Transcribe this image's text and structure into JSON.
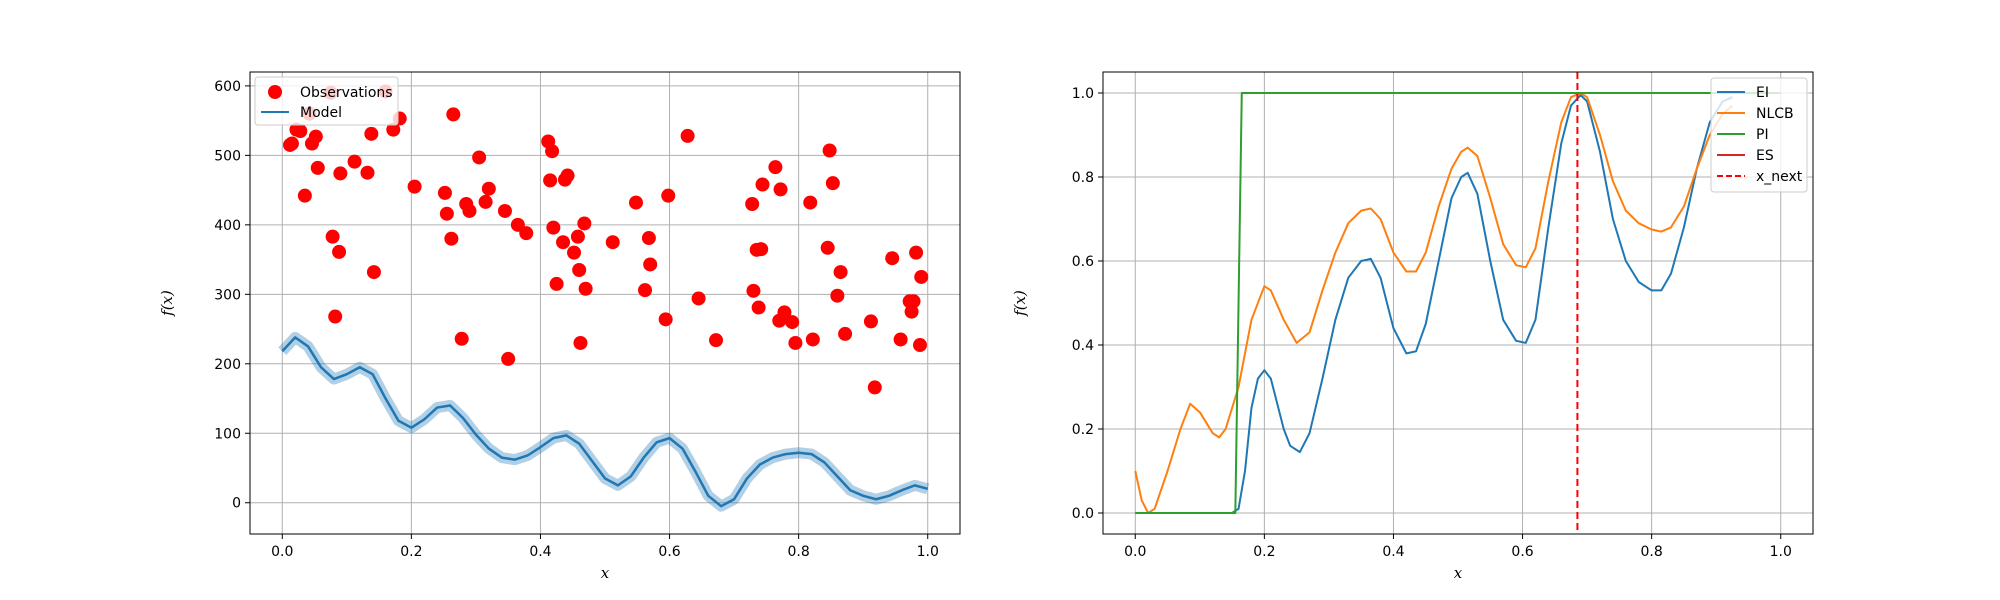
{
  "chart_data": [
    {
      "type": "scatter",
      "xlabel": "x",
      "ylabel": "f(x)",
      "xlim": [
        -0.05,
        1.05
      ],
      "ylim": [
        -45,
        620
      ],
      "xticks": [
        0.0,
        0.2,
        0.4,
        0.6,
        0.8,
        1.0
      ],
      "xtick_labels": [
        "0.0",
        "0.2",
        "0.4",
        "0.6",
        "0.8",
        "1.0"
      ],
      "yticks": [
        0,
        100,
        200,
        300,
        400,
        500,
        600
      ],
      "ytick_labels": [
        "0",
        "100",
        "200",
        "300",
        "400",
        "500",
        "600"
      ],
      "grid": true,
      "legend_position": "top-left",
      "colors": {
        "observations": "#ff0000",
        "model": "#1f77b4"
      },
      "series": [
        {
          "name": "Observations",
          "kind": "scatter",
          "x": [
            0.012,
            0.015,
            0.022,
            0.028,
            0.035,
            0.042,
            0.046,
            0.052,
            0.055,
            0.075,
            0.078,
            0.082,
            0.088,
            0.09,
            0.112,
            0.132,
            0.138,
            0.142,
            0.16,
            0.172,
            0.182,
            0.205,
            0.252,
            0.255,
            0.262,
            0.265,
            0.278,
            0.285,
            0.29,
            0.305,
            0.315,
            0.32,
            0.345,
            0.35,
            0.365,
            0.378,
            0.412,
            0.415,
            0.418,
            0.42,
            0.425,
            0.435,
            0.438,
            0.442,
            0.452,
            0.458,
            0.46,
            0.462,
            0.468,
            0.47,
            0.512,
            0.548,
            0.562,
            0.568,
            0.57,
            0.594,
            0.598,
            0.628,
            0.645,
            0.672,
            0.728,
            0.73,
            0.735,
            0.738,
            0.742,
            0.744,
            0.764,
            0.77,
            0.772,
            0.778,
            0.79,
            0.795,
            0.818,
            0.822,
            0.845,
            0.848,
            0.853,
            0.86,
            0.865,
            0.872,
            0.912,
            0.918,
            0.945,
            0.958,
            0.972,
            0.975,
            0.978,
            0.982,
            0.988,
            0.99
          ],
          "y": [
            515,
            517,
            537,
            535,
            442,
            560,
            517,
            527,
            482,
            590,
            383,
            268,
            361,
            474,
            491,
            475,
            531,
            332,
            592,
            537,
            553,
            455,
            446,
            416,
            380,
            559,
            236,
            430,
            420,
            497,
            433,
            452,
            420,
            207,
            400,
            388,
            520,
            464,
            506,
            396,
            315,
            375,
            465,
            471,
            360,
            383,
            335,
            230,
            402,
            308,
            375,
            432,
            306,
            381,
            343,
            264,
            442,
            528,
            294,
            234,
            430,
            305,
            364,
            281,
            365,
            458,
            483,
            262,
            451,
            274,
            260,
            230,
            432,
            235,
            367,
            507,
            460,
            298,
            332,
            243,
            261,
            166,
            352,
            235,
            290,
            275,
            290,
            360,
            227,
            325
          ]
        },
        {
          "name": "Model",
          "kind": "line",
          "x": [
            0.0,
            0.02,
            0.04,
            0.06,
            0.08,
            0.1,
            0.12,
            0.14,
            0.16,
            0.18,
            0.2,
            0.22,
            0.24,
            0.26,
            0.28,
            0.3,
            0.32,
            0.34,
            0.36,
            0.38,
            0.4,
            0.42,
            0.44,
            0.46,
            0.48,
            0.5,
            0.52,
            0.54,
            0.56,
            0.58,
            0.6,
            0.62,
            0.64,
            0.66,
            0.68,
            0.7,
            0.72,
            0.74,
            0.76,
            0.78,
            0.8,
            0.82,
            0.84,
            0.86,
            0.88,
            0.9,
            0.92,
            0.94,
            0.96,
            0.98,
            1.0
          ],
          "y": [
            218,
            238,
            225,
            195,
            178,
            185,
            195,
            185,
            150,
            118,
            108,
            120,
            137,
            140,
            122,
            98,
            78,
            65,
            62,
            68,
            80,
            93,
            97,
            85,
            60,
            35,
            25,
            38,
            65,
            87,
            93,
            78,
            45,
            10,
            -5,
            5,
            35,
            55,
            65,
            70,
            72,
            70,
            58,
            38,
            18,
            10,
            5,
            10,
            18,
            25,
            20
          ]
        }
      ]
    },
    {
      "type": "line",
      "xlabel": "x",
      "ylabel": "f(x)",
      "xlim": [
        -0.05,
        1.05
      ],
      "ylim": [
        -0.05,
        1.05
      ],
      "xticks": [
        0.0,
        0.2,
        0.4,
        0.6,
        0.8,
        1.0
      ],
      "xtick_labels": [
        "0.0",
        "0.2",
        "0.4",
        "0.6",
        "0.8",
        "1.0"
      ],
      "yticks": [
        0.0,
        0.2,
        0.4,
        0.6,
        0.8,
        1.0
      ],
      "ytick_labels": [
        "0.0",
        "0.2",
        "0.4",
        "0.6",
        "0.8",
        "1.0"
      ],
      "grid": true,
      "legend_position": "top-right",
      "x_next": 0.685,
      "series": [
        {
          "name": "EI",
          "color": "#1f77b4",
          "x": [
            0.0,
            0.15,
            0.16,
            0.17,
            0.18,
            0.19,
            0.2,
            0.21,
            0.22,
            0.23,
            0.24,
            0.255,
            0.27,
            0.29,
            0.31,
            0.33,
            0.35,
            0.365,
            0.38,
            0.4,
            0.42,
            0.435,
            0.45,
            0.47,
            0.49,
            0.505,
            0.515,
            0.53,
            0.55,
            0.57,
            0.59,
            0.605,
            0.62,
            0.64,
            0.66,
            0.675,
            0.69,
            0.7,
            0.72,
            0.74,
            0.76,
            0.78,
            0.8,
            0.815,
            0.83,
            0.85,
            0.87,
            0.89,
            0.91,
            0.925
          ],
          "y": [
            0.0,
            0.0,
            0.01,
            0.1,
            0.25,
            0.32,
            0.34,
            0.32,
            0.26,
            0.2,
            0.16,
            0.145,
            0.19,
            0.32,
            0.46,
            0.56,
            0.6,
            0.605,
            0.56,
            0.44,
            0.38,
            0.385,
            0.45,
            0.6,
            0.75,
            0.8,
            0.81,
            0.76,
            0.6,
            0.46,
            0.41,
            0.405,
            0.46,
            0.68,
            0.88,
            0.97,
            0.995,
            0.98,
            0.86,
            0.7,
            0.6,
            0.55,
            0.53,
            0.53,
            0.57,
            0.68,
            0.82,
            0.93,
            0.98,
            0.99
          ]
        },
        {
          "name": "NLCB",
          "color": "#ff7f0e",
          "x": [
            0.0,
            0.01,
            0.02,
            0.03,
            0.05,
            0.07,
            0.085,
            0.1,
            0.12,
            0.13,
            0.14,
            0.16,
            0.18,
            0.2,
            0.21,
            0.23,
            0.25,
            0.27,
            0.29,
            0.31,
            0.33,
            0.35,
            0.365,
            0.38,
            0.4,
            0.42,
            0.435,
            0.45,
            0.47,
            0.49,
            0.505,
            0.515,
            0.53,
            0.55,
            0.57,
            0.59,
            0.605,
            0.62,
            0.64,
            0.66,
            0.675,
            0.69,
            0.7,
            0.72,
            0.74,
            0.76,
            0.78,
            0.8,
            0.815,
            0.83,
            0.85,
            0.87,
            0.89,
            0.91,
            0.925
          ],
          "y": [
            0.1,
            0.03,
            0.0,
            0.01,
            0.1,
            0.2,
            0.26,
            0.24,
            0.19,
            0.18,
            0.2,
            0.3,
            0.46,
            0.54,
            0.53,
            0.46,
            0.405,
            0.43,
            0.53,
            0.62,
            0.69,
            0.72,
            0.725,
            0.7,
            0.62,
            0.575,
            0.575,
            0.62,
            0.73,
            0.82,
            0.86,
            0.87,
            0.85,
            0.75,
            0.64,
            0.59,
            0.585,
            0.63,
            0.79,
            0.93,
            0.99,
            1.0,
            0.99,
            0.9,
            0.79,
            0.72,
            0.69,
            0.675,
            0.67,
            0.68,
            0.73,
            0.82,
            0.9,
            0.95,
            0.97
          ]
        },
        {
          "name": "PI",
          "color": "#2ca02c",
          "x": [
            0.0,
            0.155,
            0.16,
            0.165,
            1.0
          ],
          "y": [
            0.0,
            0.0,
            0.5,
            1.0,
            1.0
          ]
        },
        {
          "name": "ES",
          "color": "#d62728",
          "x": [],
          "y": []
        },
        {
          "name": "x_next",
          "color": "#ff0000",
          "dashed": true,
          "x": [],
          "y": []
        }
      ]
    }
  ]
}
